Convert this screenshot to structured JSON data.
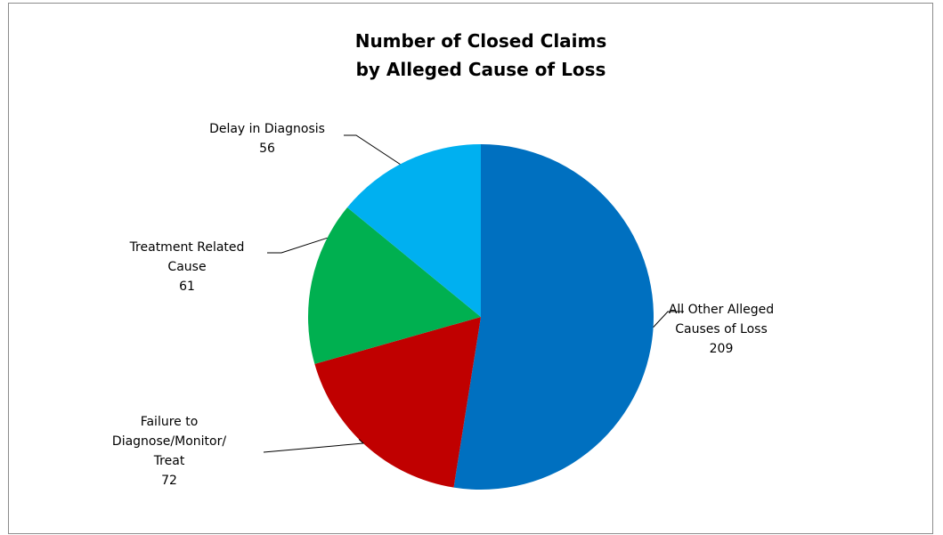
{
  "chart_data": {
    "type": "pie",
    "title_lines": [
      "Number of Closed Claims",
      "by Alleged Cause of Loss"
    ],
    "slices": [
      {
        "name_lines": [
          "All Other Alleged",
          "Causes of Loss"
        ],
        "value": 209,
        "color": "#0070c0"
      },
      {
        "name_lines": [
          "Failure to",
          "Diagnose/Monitor/",
          "Treat"
        ],
        "value": 72,
        "color": "#c00000"
      },
      {
        "name_lines": [
          "Treatment Related",
          "Cause"
        ],
        "value": 61,
        "color": "#00b050"
      },
      {
        "name_lines": [
          "Delay in Diagnosis"
        ],
        "value": 56,
        "color": "#00b0f0"
      }
    ],
    "legend": "none",
    "data_labels": "outside with leader lines"
  }
}
